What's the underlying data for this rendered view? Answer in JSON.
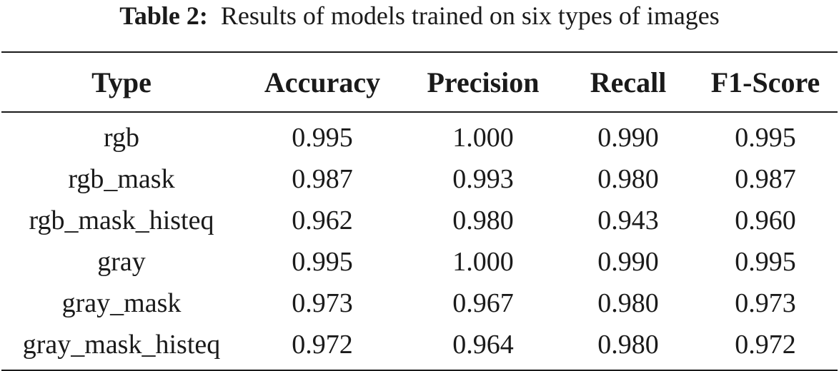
{
  "caption": {
    "label": "Table 2:",
    "text": "Results of models trained on six types of images"
  },
  "table": {
    "columns": [
      "Type",
      "Accuracy",
      "Precision",
      "Recall",
      "F1-Score"
    ],
    "rows": [
      [
        "rgb",
        "0.995",
        "1.000",
        "0.990",
        "0.995"
      ],
      [
        "rgb_mask",
        "0.987",
        "0.993",
        "0.980",
        "0.987"
      ],
      [
        "rgb_mask_histeq",
        "0.962",
        "0.980",
        "0.943",
        "0.960"
      ],
      [
        "gray",
        "0.995",
        "1.000",
        "0.990",
        "0.995"
      ],
      [
        "gray_mask",
        "0.973",
        "0.967",
        "0.980",
        "0.973"
      ],
      [
        "gray_mask_histeq",
        "0.972",
        "0.964",
        "0.980",
        "0.972"
      ]
    ]
  }
}
